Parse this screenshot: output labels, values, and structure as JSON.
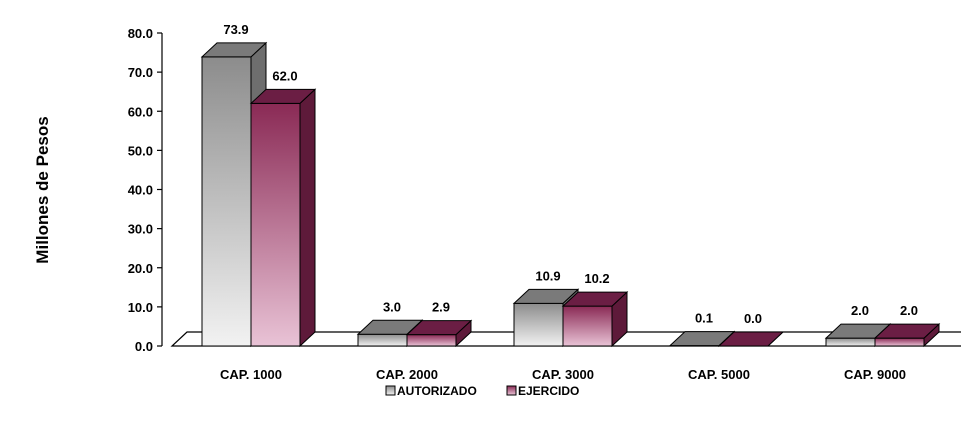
{
  "chart_data": {
    "type": "bar",
    "title": "",
    "xlabel": "",
    "ylabel": "Millones de Pesos",
    "categories": [
      "CAP. 1000",
      "CAP. 2000",
      "CAP. 3000",
      "CAP. 5000",
      "CAP. 9000"
    ],
    "series": [
      {
        "name": "AUTORIZADO",
        "values": [
          73.9,
          3.0,
          10.9,
          0.1,
          2.0
        ],
        "labels": [
          "73.9",
          "3.0",
          "10.9",
          "0.1",
          "2.0"
        ]
      },
      {
        "name": "EJERCIDO",
        "values": [
          62.0,
          2.9,
          10.2,
          0.0,
          2.0
        ],
        "labels": [
          "62.0",
          "2.9",
          "10.2",
          "0.0",
          "2.0"
        ]
      }
    ],
    "yticks": [
      "0.0",
      "10.0",
      "20.0",
      "30.0",
      "40.0",
      "50.0",
      "60.0",
      "70.0",
      "80.0"
    ],
    "ylim": [
      0,
      80
    ],
    "grid": false,
    "legend_position": "bottom-center",
    "colors": {
      "autorizado": "#8c8c8c",
      "ejercido": "#8a2a55"
    }
  }
}
